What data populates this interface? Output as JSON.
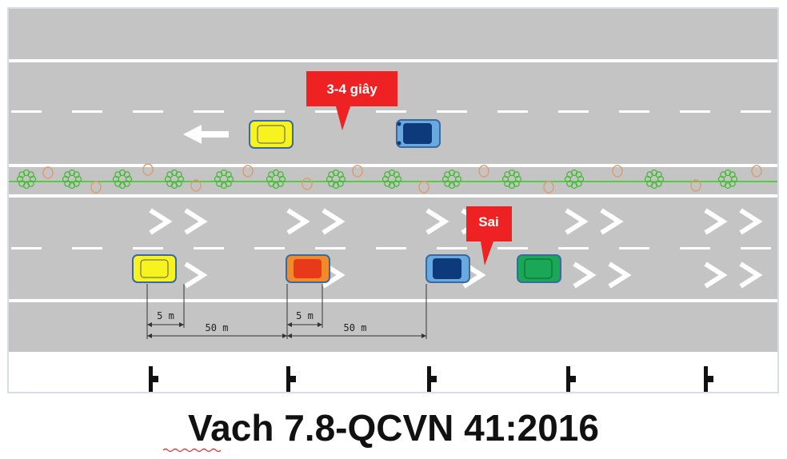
{
  "caption": "Vach 7.8-QCVN 41:2016",
  "callouts": {
    "time_gap": "3-4 giây",
    "wrong": "Sai"
  },
  "dimensions": {
    "small_gap_1": "5 m",
    "large_gap_1": "50 m",
    "small_gap_2": "5 m",
    "large_gap_2": "50 m"
  },
  "icons": {
    "direction_arrow": "left-arrow-icon",
    "chevron": "chevron-right-icon",
    "post": "road-post-icon"
  },
  "colors": {
    "road": "#c4c4c4",
    "lane_marking": "#ffffff",
    "median_line": "#55cc44",
    "median_shrub": "#44bb33",
    "median_circle": "#e09a6a",
    "callout_bg": "#ee2222",
    "car_yellow": "#f7f31f",
    "car_orange": "#f08a2a",
    "car_red": "#e83a1a",
    "car_light_blue": "#6aa8e0",
    "car_dark_blue": "#0d3a7a",
    "car_green": "#1aa858"
  },
  "vehicles": [
    {
      "name": "car-yellow-upper",
      "color": "yellow"
    },
    {
      "name": "car-blue-upper",
      "color": "blue"
    },
    {
      "name": "car-yellow-lower",
      "color": "yellow"
    },
    {
      "name": "car-orange-lower",
      "color": "orange"
    },
    {
      "name": "car-blue-lower",
      "color": "blue"
    },
    {
      "name": "car-green-lower",
      "color": "green"
    }
  ]
}
